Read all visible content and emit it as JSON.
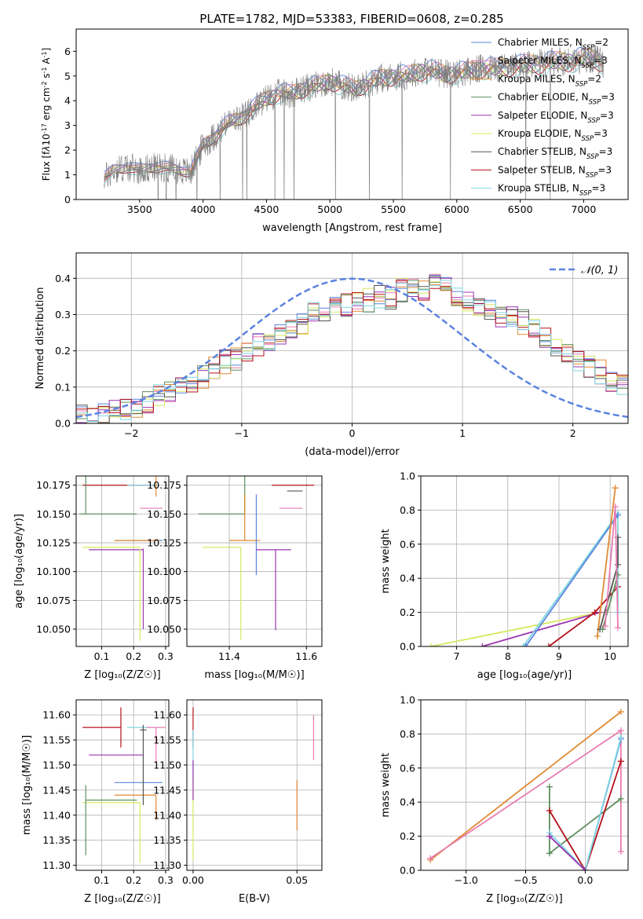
{
  "figure": {
    "title": "PLATE=1782, MJD=53383, FIBERID=0608, z=0.285"
  },
  "chart_data": [
    {
      "id": "spectrum",
      "type": "line",
      "xlabel": "wavelength [Angstrom, rest frame]",
      "ylabel_html": "Flux [f<tspan font-style='italic'>λ</tspan>10<tspan baseline-shift='super' font-size='8'>-17</tspan> erg cm<tspan baseline-shift='super' font-size='8'>-2</tspan> s<tspan baseline-shift='super' font-size='8'>-1</tspan> A<tspan baseline-shift='super' font-size='8'>-1</tspan>]",
      "xlim": [
        3000,
        7350
      ],
      "ylim": [
        0,
        6.9
      ],
      "xticks": [
        3500,
        4000,
        4500,
        5000,
        5500,
        6000,
        6500,
        7000
      ],
      "yticks": [
        0,
        1,
        2,
        3,
        4,
        5,
        6
      ],
      "grid": false,
      "legend_position": "upper-right",
      "data_continuum": {
        "x": [
          3200,
          3300,
          3400,
          3500,
          3600,
          3700,
          3800,
          3900,
          4000,
          4100,
          4200,
          4300,
          4400,
          4500,
          4600,
          4700,
          4800,
          4900,
          5000,
          5100,
          5200,
          5300,
          5400,
          5500,
          5600,
          5700,
          5800,
          5900,
          6000,
          6100,
          6200,
          6300,
          6400,
          6500,
          6600,
          6700,
          6800,
          6900,
          7000,
          7100,
          7150
        ],
        "y": [
          0.8,
          1.2,
          1.3,
          1.2,
          1.3,
          1.3,
          1.2,
          1.1,
          2.2,
          2.6,
          3.1,
          3.3,
          3.7,
          4.1,
          4.3,
          4.3,
          4.5,
          4.6,
          4.8,
          4.6,
          4.5,
          4.7,
          4.9,
          5.0,
          5.0,
          5.2,
          5.2,
          5.1,
          5.1,
          5.2,
          5.3,
          5.3,
          5.4,
          5.4,
          5.5,
          5.5,
          5.6,
          5.6,
          5.7,
          5.7,
          5.5
        ]
      },
      "series": [
        {
          "name": "Chabrier MILES, N_SSP=2",
          "color": "#5b84e0"
        },
        {
          "name": "Salpeter MILES, N_SSP=3",
          "color": "#e87cb0"
        },
        {
          "name": "Kroupa MILES, N_SSP=2",
          "color": "#e08a32"
        },
        {
          "name": "Chabrier ELODIE, N_SSP=3",
          "color": "#5e8f5e"
        },
        {
          "name": "Salpeter ELODIE, N_SSP=3",
          "color": "#9a35b0"
        },
        {
          "name": "Kroupa ELODIE, N_SSP=3",
          "color": "#d8e860"
        },
        {
          "name": "Chabrier STELIB, N_SSP=3",
          "color": "#555555"
        },
        {
          "name": "Salpeter STELIB, N_SSP=3",
          "color": "#b5121b"
        },
        {
          "name": "Kroupa STELIB, N_SSP=3",
          "color": "#7fd7e0"
        }
      ],
      "legend_labels": [
        {
          "pre": "Chabrier MILES, N",
          "sub": "SSP",
          "post": "=2"
        },
        {
          "pre": "Salpeter MILES, N",
          "sub": "SSP",
          "post": "=3"
        },
        {
          "pre": "Kroupa MILES, N",
          "sub": "SSP",
          "post": "=2"
        },
        {
          "pre": "Chabrier ELODIE, N",
          "sub": "SSP",
          "post": "=3"
        },
        {
          "pre": "Salpeter ELODIE, N",
          "sub": "SSP",
          "post": "=3"
        },
        {
          "pre": "Kroupa ELODIE, N",
          "sub": "SSP",
          "post": "=3"
        },
        {
          "pre": "Chabrier STELIB, N",
          "sub": "SSP",
          "post": "=3"
        },
        {
          "pre": "Salpeter STELIB, N",
          "sub": "SSP",
          "post": "=3"
        },
        {
          "pre": "Kroupa STELIB, N",
          "sub": "SSP",
          "post": "=3"
        }
      ]
    },
    {
      "id": "residuals",
      "type": "histogram",
      "xlabel": "(data-model)/error",
      "ylabel": "Normed distribution",
      "xlim": [
        -2.5,
        2.5
      ],
      "ylim": [
        0,
        0.47
      ],
      "xticks": [
        -2,
        -1,
        0,
        1,
        2
      ],
      "yticks": [
        0.0,
        0.1,
        0.2,
        0.3,
        0.4
      ],
      "grid": true,
      "legend": "𝒩(0, 1)",
      "legend_position": "upper-right",
      "gaussian": {
        "mean": 0,
        "sigma": 1,
        "color": "#5b84e0"
      },
      "bin_width": 0.1,
      "bin_start": -2.5,
      "base_heights": [
        0.02,
        0.025,
        0.03,
        0.04,
        0.045,
        0.05,
        0.06,
        0.075,
        0.09,
        0.1,
        0.11,
        0.13,
        0.15,
        0.17,
        0.18,
        0.2,
        0.22,
        0.23,
        0.25,
        0.26,
        0.28,
        0.3,
        0.3,
        0.32,
        0.33,
        0.34,
        0.34,
        0.35,
        0.35,
        0.37,
        0.37,
        0.36,
        0.38,
        0.37,
        0.35,
        0.34,
        0.33,
        0.31,
        0.3,
        0.29,
        0.28,
        0.26,
        0.24,
        0.22,
        0.2,
        0.18,
        0.16,
        0.14,
        0.12,
        0.1
      ]
    },
    {
      "id": "age-vs-z",
      "type": "errorbar",
      "xlabel": "Z [log₁₀(Z/Z☉)]",
      "ylabel": "age  [log₁₀(age/yr)]",
      "xlim": [
        0.02,
        0.31
      ],
      "ylim": [
        10.035,
        10.183
      ],
      "xticks": [
        0.1,
        0.2,
        0.3
      ],
      "yticks": [
        10.05,
        10.075,
        10.1,
        10.125,
        10.15,
        10.175
      ],
      "grid": true,
      "points": [
        {
          "color": "#b5121b",
          "x": 0.16,
          "y": 10.175,
          "xe": [
            0.12,
            0.12
          ],
          "ye": [
            0.0,
            0.0
          ]
        },
        {
          "color": "#7fd7e0",
          "x": 0.24,
          "y": 10.175,
          "xe": [
            0.06,
            0.04
          ],
          "ye": [
            0.0,
            0.0
          ]
        },
        {
          "color": "#555555",
          "x": 0.22,
          "y": 10.17,
          "xe": [
            0.0,
            0.0
          ],
          "ye": [
            0.0,
            0.0
          ]
        },
        {
          "color": "#e08a32",
          "x": 0.27,
          "y": 10.165,
          "xe": [
            0.0,
            0.0
          ],
          "ye": [
            0.0,
            0.09
          ]
        },
        {
          "color": "#e87cb0",
          "x": 0.25,
          "y": 10.155,
          "xe": [
            0.03,
            0.04
          ],
          "ye": [
            0.0,
            0.0
          ]
        },
        {
          "color": "#5e8f5e",
          "x": 0.05,
          "y": 10.15,
          "xe": [
            0.02,
            0.16
          ],
          "ye": [
            0.0,
            0.1
          ]
        },
        {
          "color": "#5b84e0",
          "x": 0.24,
          "y": 10.127,
          "xe": [
            0.1,
            0.05
          ],
          "ye": [
            0.0,
            0.0
          ]
        },
        {
          "color": "#e08a32",
          "x": 0.2,
          "y": 10.127,
          "xe": [
            0.06,
            0.08
          ],
          "ye": [
            0.0,
            0.0
          ]
        },
        {
          "color": "#d8e860",
          "x": 0.16,
          "y": 10.121,
          "xe": [
            0.12,
            0.06
          ],
          "ye": [
            0.0,
            0.0
          ]
        },
        {
          "color": "#9a35b0",
          "x": 0.15,
          "y": 10.119,
          "xe": [
            0.09,
            0.08
          ],
          "ye": [
            0.0,
            0.0
          ]
        },
        {
          "color": "#9a35b0",
          "x": 0.23,
          "y": 10.1,
          "xe": [
            0.0,
            0.0
          ],
          "ye": [
            0.05,
            0.02
          ]
        },
        {
          "color": "#d8e860",
          "x": 0.22,
          "y": 10.1,
          "xe": [
            0.0,
            0.0
          ],
          "ye": [
            0.06,
            0.02
          ]
        }
      ]
    },
    {
      "id": "age-vs-mass",
      "type": "errorbar",
      "xlabel": "mass [log₁₀(M/M☉)]",
      "ylabel": "",
      "xlim": [
        11.29,
        11.64
      ],
      "ylim": [
        10.035,
        10.183
      ],
      "xticks": [
        11.4,
        11.6
      ],
      "yticks": [
        10.05,
        10.075,
        10.1,
        10.125,
        10.15,
        10.175
      ],
      "grid": true,
      "points": [
        {
          "color": "#b5121b",
          "x": 11.57,
          "y": 10.175,
          "xe": [
            0.06,
            0.05
          ],
          "ye": [
            0.0,
            0.0
          ]
        },
        {
          "color": "#555555",
          "x": 11.57,
          "y": 10.17,
          "xe": [
            0.02,
            0.02
          ],
          "ye": [
            0.0,
            0.0
          ]
        },
        {
          "color": "#5e8f5e",
          "x": 11.44,
          "y": 10.15,
          "xe": [
            0.12,
            0.0
          ],
          "ye": [
            0.0,
            0.1
          ]
        },
        {
          "color": "#e87cb0",
          "x": 11.56,
          "y": 10.155,
          "xe": [
            0.03,
            0.03
          ],
          "ye": [
            0.0,
            0.0
          ]
        },
        {
          "color": "#e08a32",
          "x": 11.44,
          "y": 10.127,
          "xe": [
            0.04,
            0.04
          ],
          "ye": [
            0.0,
            0.04
          ]
        },
        {
          "color": "#5b84e0",
          "x": 11.47,
          "y": 10.127,
          "xe": [
            0.0,
            0.0
          ],
          "ye": [
            0.03,
            0.04
          ]
        },
        {
          "color": "#d8e860",
          "x": 11.43,
          "y": 10.121,
          "xe": [
            0.1,
            0.0
          ],
          "ye": [
            0.08,
            0.0
          ]
        },
        {
          "color": "#9a35b0",
          "x": 11.52,
          "y": 10.119,
          "xe": [
            0.05,
            0.04
          ],
          "ye": [
            0.07,
            0.0
          ]
        }
      ]
    },
    {
      "id": "weight-vs-age",
      "type": "line",
      "xlabel": "age  [log₁₀(age/yr)]",
      "ylabel": "mass weight",
      "xlim": [
        6.3,
        10.35
      ],
      "ylim": [
        0,
        1
      ],
      "xticks": [
        7,
        8,
        9,
        10
      ],
      "yticks": [
        0.0,
        0.2,
        0.4,
        0.6,
        0.8,
        1.0
      ],
      "grid": true,
      "series": [
        {
          "color": "#d8e860",
          "x": [
            6.5,
            9.8
          ],
          "y": [
            0.0,
            0.2
          ]
        },
        {
          "color": "#9a35b0",
          "x": [
            7.5,
            9.8
          ],
          "y": [
            0.0,
            0.2
          ]
        },
        {
          "color": "#b5121b",
          "x": [
            8.8,
            9.7,
            10.15
          ],
          "y": [
            0.0,
            0.2,
            0.35
          ]
        },
        {
          "color": "#7fd7e0",
          "x": [
            8.3,
            10.15,
            10.15
          ],
          "y": [
            0.0,
            0.78,
            0.2
          ]
        },
        {
          "color": "#5b84e0",
          "x": [
            8.35,
            10.15
          ],
          "y": [
            0.0,
            0.77
          ]
        },
        {
          "color": "#e08a32",
          "x": [
            9.75,
            10.1
          ],
          "y": [
            0.06,
            0.93
          ]
        },
        {
          "color": "#555555",
          "x": [
            9.8,
            10.15,
            10.15
          ],
          "y": [
            0.1,
            0.48,
            0.64
          ]
        },
        {
          "color": "#5e8f5e",
          "x": [
            9.85,
            10.15
          ],
          "y": [
            0.1,
            0.42
          ]
        },
        {
          "color": "#e87cb0",
          "x": [
            9.9,
            10.1,
            10.15
          ],
          "y": [
            0.12,
            0.82,
            0.11
          ]
        }
      ]
    },
    {
      "id": "mass-vs-z",
      "type": "errorbar",
      "xlabel": "Z [log₁₀(Z/Z☉)]",
      "ylabel": "mass [log₁₀(M/M☉)]",
      "xlim": [
        0.02,
        0.31
      ],
      "ylim": [
        11.29,
        11.63
      ],
      "xticks": [
        0.1,
        0.2,
        0.3
      ],
      "yticks": [
        11.3,
        11.35,
        11.4,
        11.45,
        11.5,
        11.55,
        11.6
      ],
      "grid": true,
      "points": [
        {
          "color": "#b5121b",
          "x": 0.16,
          "y": 11.575,
          "xe": [
            0.12,
            0.0
          ],
          "ye": [
            0.04,
            0.04
          ]
        },
        {
          "color": "#555555",
          "x": 0.22,
          "y": 11.57,
          "xe": [
            0.0,
            0.02
          ],
          "ye": [
            0.0,
            0.0
          ]
        },
        {
          "color": "#7fd7e0",
          "x": 0.24,
          "y": 11.575,
          "xe": [
            0.06,
            0.04
          ],
          "ye": [
            0.0,
            0.0
          ]
        },
        {
          "color": "#e87cb0",
          "x": 0.27,
          "y": 11.575,
          "xe": [
            0.03,
            0.03
          ],
          "ye": [
            0.07,
            0.0
          ]
        },
        {
          "color": "#9a35b0",
          "x": 0.15,
          "y": 11.52,
          "xe": [
            0.09,
            0.08
          ],
          "ye": [
            0.0,
            0.0
          ]
        },
        {
          "color": "#5b84e0",
          "x": 0.24,
          "y": 11.465,
          "xe": [
            0.1,
            0.05
          ],
          "ye": [
            0.0,
            0.0
          ]
        },
        {
          "color": "#e08a32",
          "x": 0.27,
          "y": 11.44,
          "xe": [
            0.13,
            0.0
          ],
          "ye": [
            0.05,
            0.0
          ]
        },
        {
          "color": "#d8e860",
          "x": 0.22,
          "y": 11.425,
          "xe": [
            0.18,
            0.0
          ],
          "ye": [
            0.12,
            0.0
          ]
        },
        {
          "color": "#5e8f5e",
          "x": 0.05,
          "y": 11.43,
          "xe": [
            0.0,
            0.16
          ],
          "ye": [
            0.11,
            0.03
          ]
        },
        {
          "color": "#555555",
          "x": 0.23,
          "y": 11.5,
          "xe": [
            0.0,
            0.0
          ],
          "ye": [
            0.08,
            0.08
          ]
        }
      ]
    },
    {
      "id": "mass-vs-ebv",
      "type": "errorbar",
      "xlabel": "E(B-V)",
      "ylabel": "",
      "xlim": [
        -0.003,
        0.062
      ],
      "ylim": [
        11.29,
        11.63
      ],
      "xticks": [
        0.0,
        0.05
      ],
      "yticks": [
        11.3,
        11.35,
        11.4,
        11.45,
        11.5,
        11.55,
        11.6
      ],
      "grid": true,
      "points": [
        {
          "color": "#b5121b",
          "x": 0.0,
          "y": 11.575,
          "xe": [
            0,
            0
          ],
          "ye": [
            0.04,
            0.04
          ]
        },
        {
          "color": "#7fd7e0",
          "x": 0.0,
          "y": 11.53,
          "xe": [
            0,
            0
          ],
          "ye": [
            0.06,
            0.04
          ]
        },
        {
          "color": "#d8e860",
          "x": 0.0,
          "y": 11.42,
          "xe": [
            0,
            0
          ],
          "ye": [
            0.11,
            0.06
          ]
        },
        {
          "color": "#9a35b0",
          "x": 0.0,
          "y": 11.47,
          "xe": [
            0,
            0
          ],
          "ye": [
            0.04,
            0.04
          ]
        },
        {
          "color": "#e87cb0",
          "x": 0.058,
          "y": 11.555,
          "xe": [
            0,
            0
          ],
          "ye": [
            0.045,
            0.045
          ]
        },
        {
          "color": "#e08a32",
          "x": 0.05,
          "y": 11.42,
          "xe": [
            0,
            0
          ],
          "ye": [
            0.05,
            0.05
          ]
        }
      ]
    },
    {
      "id": "weight-vs-z",
      "type": "line",
      "xlabel": "Z [log₁₀(Z/Z☉)]",
      "ylabel": "mass weight",
      "xlim": [
        -1.38,
        0.36
      ],
      "ylim": [
        0,
        1
      ],
      "xticks": [
        -1.0,
        -0.5,
        0.0
      ],
      "yticks": [
        0.0,
        0.2,
        0.4,
        0.6,
        0.8,
        1.0
      ],
      "grid": true,
      "series": [
        {
          "color": "#e08a32",
          "x": [
            -1.3,
            0.3
          ],
          "y": [
            0.06,
            0.93
          ]
        },
        {
          "color": "#e87cb0",
          "x": [
            -1.3,
            0.3,
            0.3
          ],
          "y": [
            0.07,
            0.82,
            0.11
          ]
        },
        {
          "color": "#5e8f5e",
          "x": [
            -0.3,
            -0.3,
            0.3
          ],
          "y": [
            0.49,
            0.1,
            0.42
          ]
        },
        {
          "color": "#b5121b",
          "x": [
            -0.3,
            0.0,
            0.3,
            0.3
          ],
          "y": [
            0.35,
            0.0,
            0.64,
            0.64
          ]
        },
        {
          "color": "#5b84e0",
          "x": [
            -0.3,
            0.0,
            0.3
          ],
          "y": [
            0.2,
            0.0,
            0.77
          ]
        },
        {
          "color": "#7fd7e0",
          "x": [
            -0.3,
            0.0,
            0.3
          ],
          "y": [
            0.22,
            0.0,
            0.78
          ]
        },
        {
          "color": "#9a35b0",
          "x": [
            -0.3,
            0.0
          ],
          "y": [
            0.2,
            0.0
          ]
        }
      ]
    }
  ]
}
